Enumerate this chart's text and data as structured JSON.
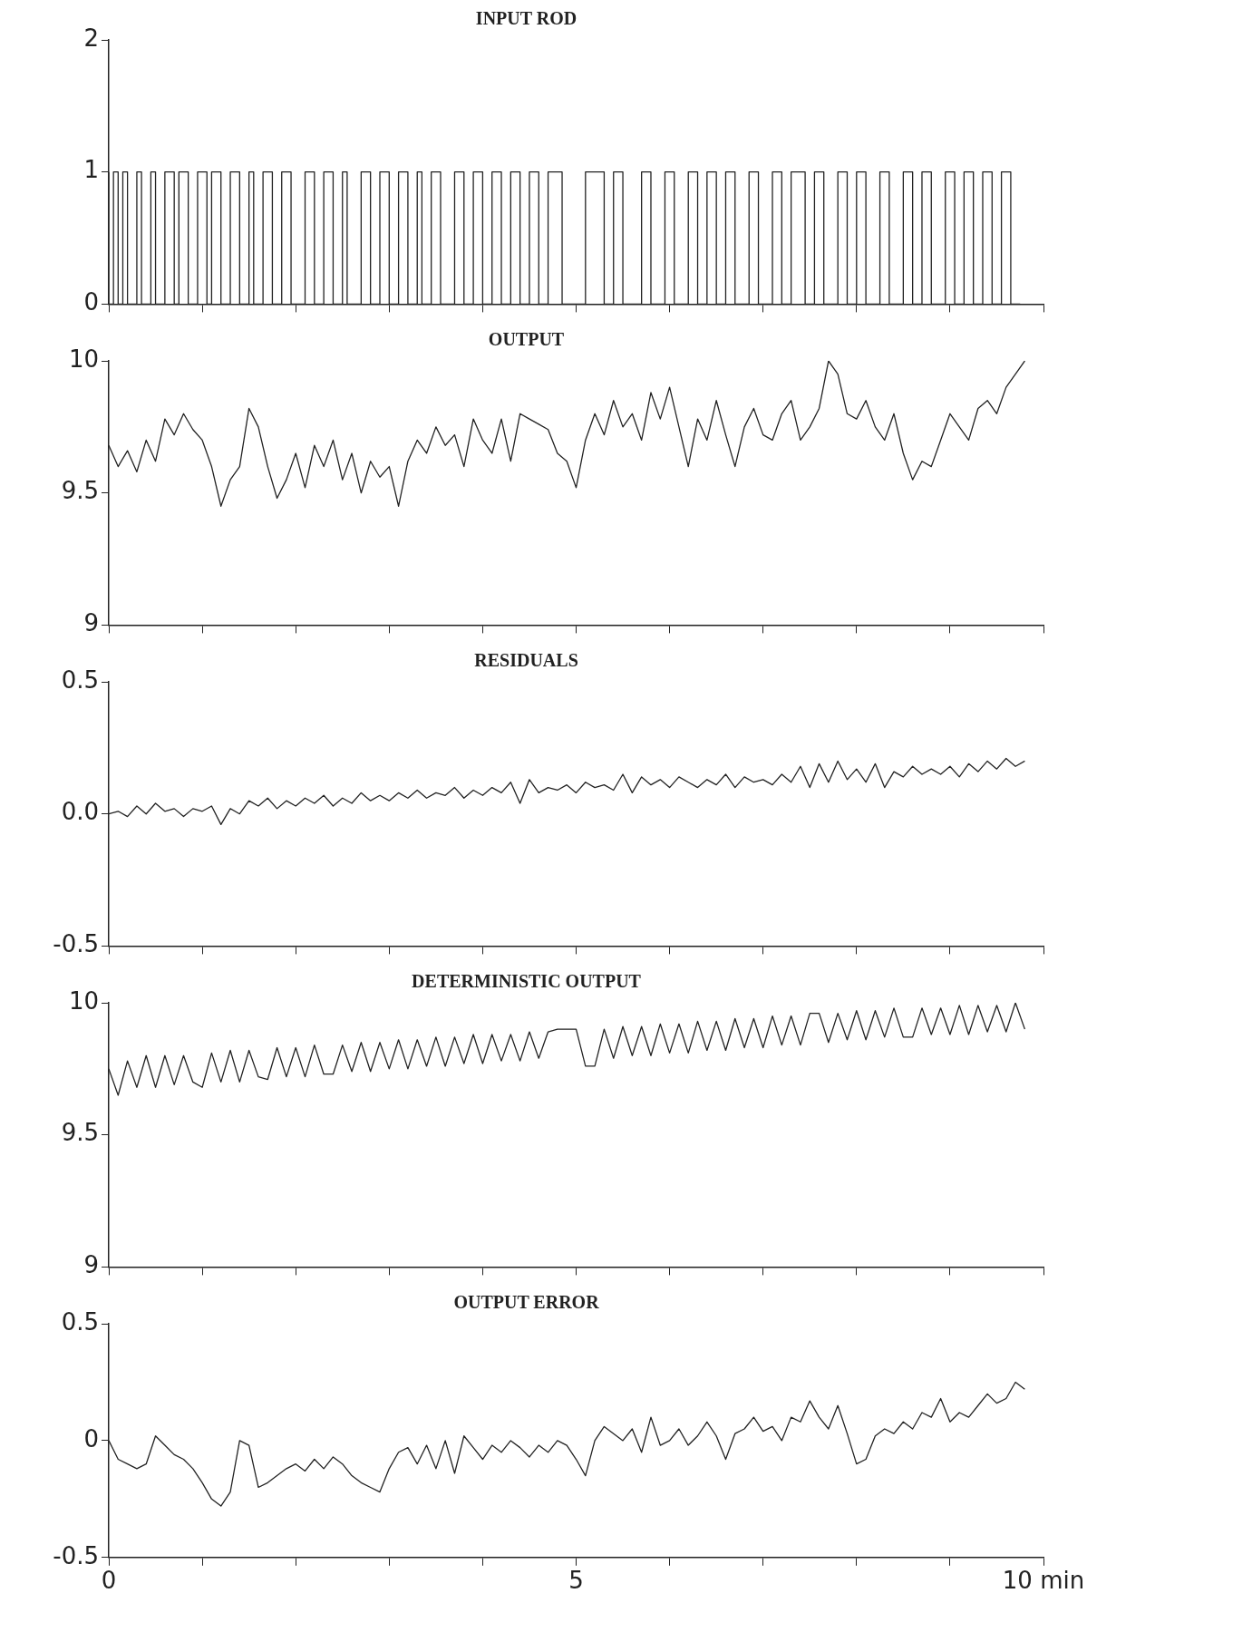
{
  "chart_data": [
    {
      "type": "step",
      "title": "INPUT ROD",
      "tick_labels": "y",
      "xlim": [
        0,
        10
      ],
      "xticks": [
        0,
        1,
        2,
        3,
        4,
        5,
        6,
        7,
        8,
        9,
        10
      ],
      "ylim": [
        0,
        2
      ],
      "yticks": [
        0,
        1,
        2
      ],
      "series": [
        {
          "color": "#222222",
          "x": [
            0,
            0.05,
            0.1,
            0.15,
            0.2,
            0.3,
            0.35,
            0.45,
            0.5,
            0.6,
            0.7,
            0.75,
            0.85,
            0.95,
            1.05,
            1.1,
            1.2,
            1.3,
            1.4,
            1.5,
            1.55,
            1.65,
            1.75,
            1.85,
            1.95,
            2.1,
            2.2,
            2.3,
            2.4,
            2.5,
            2.55,
            2.7,
            2.8,
            2.9,
            3.0,
            3.1,
            3.2,
            3.3,
            3.35,
            3.45,
            3.55,
            3.7,
            3.8,
            3.9,
            4.0,
            4.1,
            4.2,
            4.3,
            4.4,
            4.5,
            4.6,
            4.7,
            4.85,
            5.1,
            5.3,
            5.4,
            5.5,
            5.7,
            5.8,
            5.95,
            6.05,
            6.2,
            6.3,
            6.4,
            6.5,
            6.6,
            6.7,
            6.85,
            6.95,
            7.1,
            7.2,
            7.3,
            7.45,
            7.55,
            7.65,
            7.8,
            7.9,
            8.0,
            8.1,
            8.25,
            8.35,
            8.5,
            8.6,
            8.7,
            8.8,
            8.95,
            9.05,
            9.15,
            9.25,
            9.35,
            9.45,
            9.55,
            9.65,
            9.75
          ],
          "values": [
            1,
            0,
            1,
            0,
            1,
            0,
            1,
            0,
            1,
            0,
            1,
            0,
            1,
            0,
            1,
            0,
            1,
            0,
            1,
            0,
            1,
            0,
            1,
            0,
            1,
            0,
            1,
            0,
            1,
            0,
            1,
            0,
            1,
            0,
            1,
            0,
            1,
            0,
            1,
            0,
            1,
            0,
            1,
            0,
            1,
            0,
            1,
            0,
            1,
            0,
            1,
            0,
            1,
            0,
            1,
            0,
            1,
            0,
            1,
            0,
            1,
            0,
            1,
            0,
            1,
            0,
            1,
            0,
            1,
            0,
            1,
            0,
            1,
            0,
            1,
            0,
            1,
            0,
            1,
            0,
            1,
            0,
            1,
            0,
            1,
            0,
            1,
            0,
            1,
            0,
            1,
            0,
            1,
            0
          ]
        }
      ]
    },
    {
      "type": "line",
      "title": "OUTPUT",
      "tick_labels": "y",
      "xlim": [
        0,
        10
      ],
      "xticks": [
        0,
        1,
        2,
        3,
        4,
        5,
        6,
        7,
        8,
        9,
        10
      ],
      "ylim": [
        9,
        10
      ],
      "yticks": [
        9,
        9.5,
        10
      ],
      "x": [
        0,
        0.1,
        0.2,
        0.3,
        0.4,
        0.5,
        0.6,
        0.7,
        0.8,
        0.9,
        1,
        1.1,
        1.2,
        1.3,
        1.4,
        1.5,
        1.6,
        1.7,
        1.8,
        1.9,
        2,
        2.1,
        2.2,
        2.3,
        2.4,
        2.5,
        2.6,
        2.7,
        2.8,
        2.9,
        3,
        3.1,
        3.2,
        3.3,
        3.4,
        3.5,
        3.6,
        3.7,
        3.8,
        3.9,
        4,
        4.1,
        4.2,
        4.3,
        4.4,
        4.5,
        4.6,
        4.7,
        4.8,
        4.9,
        5,
        5.1,
        5.2,
        5.3,
        5.4,
        5.5,
        5.6,
        5.7,
        5.8,
        5.9,
        6,
        6.1,
        6.2,
        6.3,
        6.4,
        6.5,
        6.6,
        6.7,
        6.8,
        6.9,
        7,
        7.1,
        7.2,
        7.3,
        7.4,
        7.5,
        7.6,
        7.7,
        7.8,
        7.9,
        8,
        8.1,
        8.2,
        8.3,
        8.4,
        8.5,
        8.6,
        8.7,
        8.8,
        8.9,
        9,
        9.1,
        9.2,
        9.3,
        9.4,
        9.5,
        9.6,
        9.7,
        9.8
      ],
      "series": [
        {
          "color": "#222222",
          "values": [
            9.68,
            9.6,
            9.66,
            9.58,
            9.7,
            9.62,
            9.78,
            9.72,
            9.8,
            9.74,
            9.7,
            9.6,
            9.45,
            9.55,
            9.6,
            9.82,
            9.75,
            9.6,
            9.48,
            9.55,
            9.65,
            9.52,
            9.68,
            9.6,
            9.7,
            9.55,
            9.65,
            9.5,
            9.62,
            9.56,
            9.6,
            9.45,
            9.62,
            9.7,
            9.65,
            9.75,
            9.68,
            9.72,
            9.6,
            9.78,
            9.7,
            9.65,
            9.78,
            9.62,
            9.8,
            9.78,
            9.76,
            9.74,
            9.65,
            9.62,
            9.52,
            9.7,
            9.8,
            9.72,
            9.85,
            9.75,
            9.8,
            9.7,
            9.88,
            9.78,
            9.9,
            9.75,
            9.6,
            9.78,
            9.7,
            9.85,
            9.72,
            9.6,
            9.75,
            9.82,
            9.72,
            9.7,
            9.8,
            9.85,
            9.7,
            9.75,
            9.82,
            10.0,
            9.95,
            9.8,
            9.78,
            9.85,
            9.75,
            9.7,
            9.8,
            9.65,
            9.55,
            9.62,
            9.6,
            9.7,
            9.8,
            9.75,
            9.7,
            9.82,
            9.85,
            9.8,
            9.9,
            9.95,
            10.0
          ]
        }
      ]
    },
    {
      "type": "line",
      "title": "RESIDUALS",
      "tick_labels": "y",
      "xlim": [
        0,
        10
      ],
      "xticks": [
        0,
        1,
        2,
        3,
        4,
        5,
        6,
        7,
        8,
        9,
        10
      ],
      "ylim": [
        -0.5,
        0.5
      ],
      "yticks": [
        -0.5,
        {
          "value": 0,
          "label": "0.0"
        },
        0.5
      ],
      "x": [
        0,
        0.1,
        0.2,
        0.3,
        0.4,
        0.5,
        0.6,
        0.7,
        0.8,
        0.9,
        1,
        1.1,
        1.2,
        1.3,
        1.4,
        1.5,
        1.6,
        1.7,
        1.8,
        1.9,
        2,
        2.1,
        2.2,
        2.3,
        2.4,
        2.5,
        2.6,
        2.7,
        2.8,
        2.9,
        3,
        3.1,
        3.2,
        3.3,
        3.4,
        3.5,
        3.6,
        3.7,
        3.8,
        3.9,
        4,
        4.1,
        4.2,
        4.3,
        4.4,
        4.5,
        4.6,
        4.7,
        4.8,
        4.9,
        5,
        5.1,
        5.2,
        5.3,
        5.4,
        5.5,
        5.6,
        5.7,
        5.8,
        5.9,
        6,
        6.1,
        6.2,
        6.3,
        6.4,
        6.5,
        6.6,
        6.7,
        6.8,
        6.9,
        7,
        7.1,
        7.2,
        7.3,
        7.4,
        7.5,
        7.6,
        7.7,
        7.8,
        7.9,
        8,
        8.1,
        8.2,
        8.3,
        8.4,
        8.5,
        8.6,
        8.7,
        8.8,
        8.9,
        9,
        9.1,
        9.2,
        9.3,
        9.4,
        9.5,
        9.6,
        9.7,
        9.8
      ],
      "series": [
        {
          "color": "#222222",
          "values": [
            0.0,
            0.01,
            -0.01,
            0.03,
            0.0,
            0.04,
            0.01,
            0.02,
            -0.01,
            0.02,
            0.01,
            0.03,
            -0.04,
            0.02,
            0.0,
            0.05,
            0.03,
            0.06,
            0.02,
            0.05,
            0.03,
            0.06,
            0.04,
            0.07,
            0.03,
            0.06,
            0.04,
            0.08,
            0.05,
            0.07,
            0.05,
            0.08,
            0.06,
            0.09,
            0.06,
            0.08,
            0.07,
            0.1,
            0.06,
            0.09,
            0.07,
            0.1,
            0.08,
            0.12,
            0.04,
            0.13,
            0.08,
            0.1,
            0.09,
            0.11,
            0.08,
            0.12,
            0.1,
            0.11,
            0.09,
            0.15,
            0.08,
            0.14,
            0.11,
            0.13,
            0.1,
            0.14,
            0.12,
            0.1,
            0.13,
            0.11,
            0.15,
            0.1,
            0.14,
            0.12,
            0.13,
            0.11,
            0.15,
            0.12,
            0.18,
            0.1,
            0.19,
            0.12,
            0.2,
            0.13,
            0.17,
            0.12,
            0.19,
            0.1,
            0.16,
            0.14,
            0.18,
            0.15,
            0.17,
            0.15,
            0.18,
            0.14,
            0.19,
            0.16,
            0.2,
            0.17,
            0.21,
            0.18,
            0.2
          ]
        }
      ]
    },
    {
      "type": "line",
      "title": "DETERMINISTIC OUTPUT",
      "tick_labels": "y",
      "xlim": [
        0,
        10
      ],
      "xticks": [
        0,
        1,
        2,
        3,
        4,
        5,
        6,
        7,
        8,
        9,
        10
      ],
      "ylim": [
        9,
        10
      ],
      "yticks": [
        9,
        9.5,
        10
      ],
      "x": [
        0,
        0.1,
        0.2,
        0.3,
        0.4,
        0.5,
        0.6,
        0.7,
        0.8,
        0.9,
        1,
        1.1,
        1.2,
        1.3,
        1.4,
        1.5,
        1.6,
        1.7,
        1.8,
        1.9,
        2,
        2.1,
        2.2,
        2.3,
        2.4,
        2.5,
        2.6,
        2.7,
        2.8,
        2.9,
        3,
        3.1,
        3.2,
        3.3,
        3.4,
        3.5,
        3.6,
        3.7,
        3.8,
        3.9,
        4,
        4.1,
        4.2,
        4.3,
        4.4,
        4.5,
        4.6,
        4.7,
        4.8,
        4.9,
        5,
        5.1,
        5.2,
        5.3,
        5.4,
        5.5,
        5.6,
        5.7,
        5.8,
        5.9,
        6,
        6.1,
        6.2,
        6.3,
        6.4,
        6.5,
        6.6,
        6.7,
        6.8,
        6.9,
        7,
        7.1,
        7.2,
        7.3,
        7.4,
        7.5,
        7.6,
        7.7,
        7.8,
        7.9,
        8,
        8.1,
        8.2,
        8.3,
        8.4,
        8.5,
        8.6,
        8.7,
        8.8,
        8.9,
        9,
        9.1,
        9.2,
        9.3,
        9.4,
        9.5,
        9.6,
        9.7,
        9.8
      ],
      "series": [
        {
          "color": "#222222",
          "values": [
            9.75,
            9.65,
            9.78,
            9.68,
            9.8,
            9.68,
            9.8,
            9.69,
            9.8,
            9.7,
            9.68,
            9.81,
            9.7,
            9.82,
            9.7,
            9.82,
            9.72,
            9.71,
            9.83,
            9.72,
            9.83,
            9.72,
            9.84,
            9.73,
            9.73,
            9.84,
            9.74,
            9.85,
            9.74,
            9.85,
            9.75,
            9.86,
            9.75,
            9.86,
            9.76,
            9.87,
            9.76,
            9.87,
            9.77,
            9.88,
            9.77,
            9.88,
            9.78,
            9.88,
            9.78,
            9.89,
            9.79,
            9.89,
            9.9,
            9.9,
            9.9,
            9.76,
            9.76,
            9.9,
            9.79,
            9.91,
            9.8,
            9.91,
            9.8,
            9.92,
            9.81,
            9.92,
            9.81,
            9.93,
            9.82,
            9.93,
            9.82,
            9.94,
            9.83,
            9.94,
            9.83,
            9.95,
            9.84,
            9.95,
            9.84,
            9.96,
            9.96,
            9.85,
            9.96,
            9.86,
            9.97,
            9.86,
            9.97,
            9.87,
            9.98,
            9.87,
            9.87,
            9.98,
            9.88,
            9.98,
            9.88,
            9.99,
            9.88,
            9.99,
            9.89,
            9.99,
            9.89,
            10.0,
            9.9
          ]
        }
      ]
    },
    {
      "type": "line",
      "title": "OUTPUT ERROR",
      "xlim": [
        0,
        10
      ],
      "xticks": [
        0,
        {
          "value": 1,
          "label": null
        },
        {
          "value": 2,
          "label": null
        },
        {
          "value": 3,
          "label": null
        },
        {
          "value": 4,
          "label": null
        },
        5,
        {
          "value": 6,
          "label": null
        },
        {
          "value": 7,
          "label": null
        },
        {
          "value": 8,
          "label": null
        },
        {
          "value": 9,
          "label": null
        },
        {
          "value": 10,
          "label": "10 min"
        }
      ],
      "ylim": [
        -0.5,
        0.5
      ],
      "yticks": [
        -0.5,
        0,
        0.5
      ],
      "x": [
        0,
        0.1,
        0.2,
        0.3,
        0.4,
        0.5,
        0.6,
        0.7,
        0.8,
        0.9,
        1,
        1.1,
        1.2,
        1.3,
        1.4,
        1.5,
        1.6,
        1.7,
        1.8,
        1.9,
        2,
        2.1,
        2.2,
        2.3,
        2.4,
        2.5,
        2.6,
        2.7,
        2.8,
        2.9,
        3,
        3.1,
        3.2,
        3.3,
        3.4,
        3.5,
        3.6,
        3.7,
        3.8,
        3.9,
        4,
        4.1,
        4.2,
        4.3,
        4.4,
        4.5,
        4.6,
        4.7,
        4.8,
        4.9,
        5,
        5.1,
        5.2,
        5.3,
        5.4,
        5.5,
        5.6,
        5.7,
        5.8,
        5.9,
        6,
        6.1,
        6.2,
        6.3,
        6.4,
        6.5,
        6.6,
        6.7,
        6.8,
        6.9,
        7,
        7.1,
        7.2,
        7.3,
        7.4,
        7.5,
        7.6,
        7.7,
        7.8,
        7.9,
        8,
        8.1,
        8.2,
        8.3,
        8.4,
        8.5,
        8.6,
        8.7,
        8.8,
        8.9,
        9,
        9.1,
        9.2,
        9.3,
        9.4,
        9.5,
        9.6,
        9.7,
        9.8
      ],
      "series": [
        {
          "color": "#222222",
          "values": [
            0.0,
            -0.08,
            -0.1,
            -0.12,
            -0.1,
            0.02,
            -0.02,
            -0.06,
            -0.08,
            -0.12,
            -0.18,
            -0.25,
            -0.28,
            -0.22,
            0.0,
            -0.02,
            -0.2,
            -0.18,
            -0.15,
            -0.12,
            -0.1,
            -0.13,
            -0.08,
            -0.12,
            -0.07,
            -0.1,
            -0.15,
            -0.18,
            -0.2,
            -0.22,
            -0.12,
            -0.05,
            -0.03,
            -0.1,
            -0.02,
            -0.12,
            0.0,
            -0.14,
            0.02,
            -0.03,
            -0.08,
            -0.02,
            -0.05,
            0.0,
            -0.03,
            -0.07,
            -0.02,
            -0.05,
            0.0,
            -0.02,
            -0.08,
            -0.15,
            0.0,
            0.06,
            0.03,
            0.0,
            0.05,
            -0.05,
            0.1,
            -0.02,
            0.0,
            0.05,
            -0.02,
            0.02,
            0.08,
            0.02,
            -0.08,
            0.03,
            0.05,
            0.1,
            0.04,
            0.06,
            0.0,
            0.1,
            0.08,
            0.17,
            0.1,
            0.05,
            0.15,
            0.03,
            -0.1,
            -0.08,
            0.02,
            0.05,
            0.03,
            0.08,
            0.05,
            0.12,
            0.1,
            0.18,
            0.08,
            0.12,
            0.1,
            0.15,
            0.2,
            0.16,
            0.18,
            0.25,
            0.22
          ]
        }
      ]
    }
  ]
}
